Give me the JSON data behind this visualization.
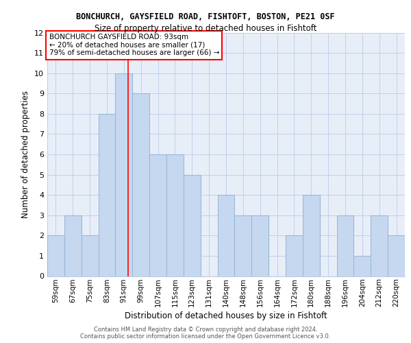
{
  "title": "BONCHURCH, GAYSFIELD ROAD, FISHTOFT, BOSTON, PE21 0SF",
  "subtitle": "Size of property relative to detached houses in Fishtoft",
  "xlabel": "Distribution of detached houses by size in Fishtoft",
  "ylabel": "Number of detached properties",
  "categories": [
    "59sqm",
    "67sqm",
    "75sqm",
    "83sqm",
    "91sqm",
    "99sqm",
    "107sqm",
    "115sqm",
    "123sqm",
    "131sqm",
    "140sqm",
    "148sqm",
    "156sqm",
    "164sqm",
    "172sqm",
    "180sqm",
    "188sqm",
    "196sqm",
    "204sqm",
    "212sqm",
    "220sqm"
  ],
  "values": [
    2,
    3,
    2,
    8,
    10,
    9,
    6,
    6,
    5,
    0,
    4,
    3,
    3,
    0,
    2,
    4,
    0,
    3,
    1,
    3,
    2
  ],
  "bar_color": "#c5d8f0",
  "bar_edge_color": "#9ab8d8",
  "annotation_title": "BONCHURCH GAYSFIELD ROAD: 93sqm",
  "annotation_line1": "← 20% of detached houses are smaller (17)",
  "annotation_line2": "79% of semi-detached houses are larger (66) →",
  "red_line_x": 4.25,
  "ylim": [
    0,
    12
  ],
  "yticks": [
    0,
    1,
    2,
    3,
    4,
    5,
    6,
    7,
    8,
    9,
    10,
    11,
    12
  ],
  "grid_color": "#c0d0e8",
  "bg_color": "#e8eef8",
  "footer1": "Contains HM Land Registry data © Crown copyright and database right 2024.",
  "footer2": "Contains public sector information licensed under the Open Government Licence v3.0.",
  "title_fontsize": 8.5,
  "subtitle_fontsize": 8.5,
  "axis_label_fontsize": 8.5,
  "tick_fontsize": 7.5,
  "annotation_fontsize": 7.5,
  "footer_fontsize": 6.0
}
